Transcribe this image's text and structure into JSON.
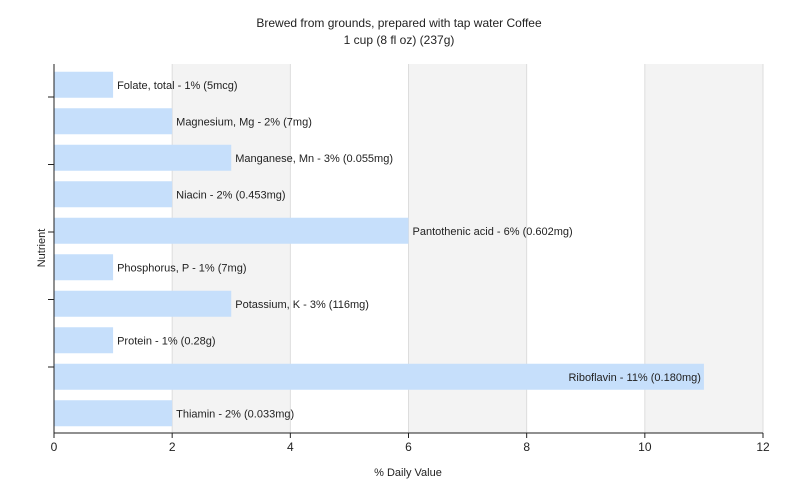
{
  "chart_data": {
    "type": "bar",
    "orientation": "horizontal",
    "title": "Brewed from grounds, prepared with tap water Coffee",
    "subtitle": "1 cup (8 fl oz) (237g)",
    "xlabel": "% Daily Value",
    "ylabel": "Nutrient",
    "xlim": [
      0,
      12
    ],
    "xticks": [
      0,
      2,
      4,
      6,
      8,
      10,
      12
    ],
    "grid": "vertical",
    "bar_color": "#c6dffb",
    "categories": [
      "Folate, total",
      "Magnesium, Mg",
      "Manganese, Mn",
      "Niacin",
      "Pantothenic acid",
      "Phosphorus, P",
      "Potassium, K",
      "Protein",
      "Riboflavin",
      "Thiamin"
    ],
    "values": [
      1,
      2,
      3,
      2,
      6,
      1,
      3,
      1,
      11,
      2
    ],
    "labels": [
      "Folate, total - 1% (5mcg)",
      "Magnesium, Mg - 2% (7mg)",
      "Manganese, Mn - 3% (0.055mg)",
      "Niacin - 2% (0.453mg)",
      "Pantothenic acid - 6% (0.602mg)",
      "Phosphorus, P - 1% (7mg)",
      "Potassium, K - 3% (116mg)",
      "Protein - 1% (0.28g)",
      "Riboflavin - 11% (0.180mg)",
      "Thiamin - 2% (0.033mg)"
    ]
  }
}
